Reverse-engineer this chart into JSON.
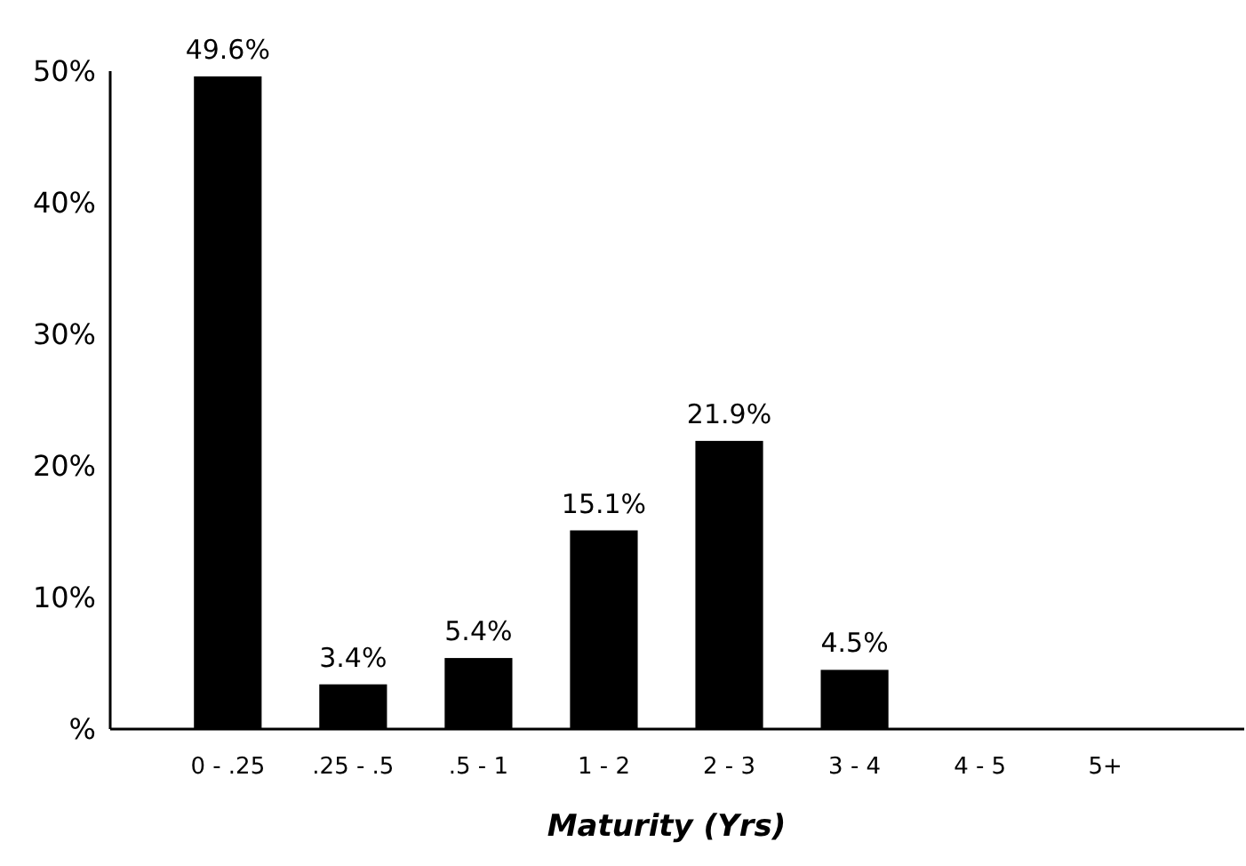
{
  "chart_data": {
    "type": "bar",
    "xlabel": "Maturity (Yrs)",
    "categories": [
      "0 - .25",
      ".25 - .5",
      ".5 - 1",
      "1 - 2",
      "2 - 3",
      "3 - 4",
      "4 - 5",
      "5+"
    ],
    "values": [
      49.6,
      3.4,
      5.4,
      15.1,
      21.9,
      4.5,
      0,
      0
    ],
    "value_labels": [
      "49.6%",
      "3.4%",
      "5.4%",
      "15.1%",
      "21.9%",
      "4.5%",
      null,
      null
    ],
    "color": "#000000",
    "ylim": [
      0,
      50
    ],
    "yticks": [
      {
        "value": 0,
        "label": "%"
      },
      {
        "value": 10,
        "label": "10%"
      },
      {
        "value": 20,
        "label": "20%"
      },
      {
        "value": 30,
        "label": "30%"
      },
      {
        "value": 40,
        "label": "40%"
      },
      {
        "value": 50,
        "label": "50%"
      }
    ],
    "grid": false
  }
}
